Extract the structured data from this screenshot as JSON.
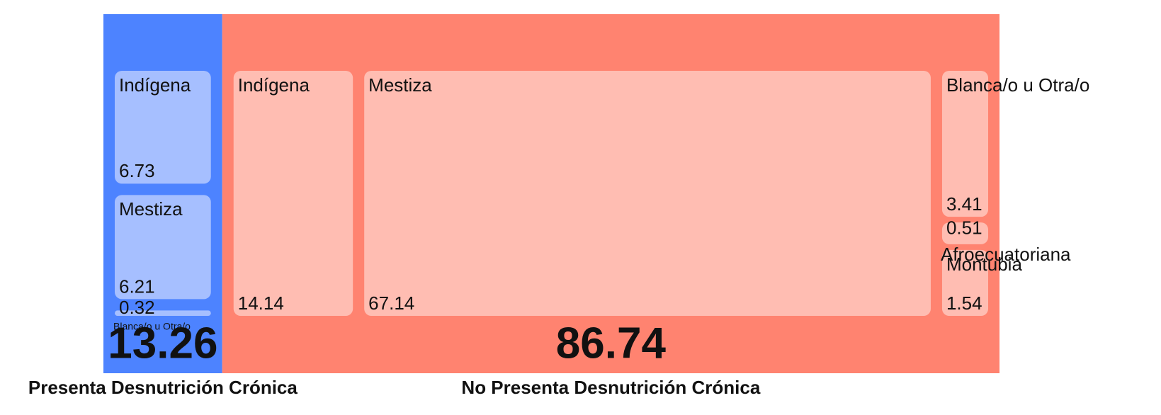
{
  "chart_data": {
    "type": "treemap",
    "groups": [
      {
        "name": "Presenta Desnutrición Crónica",
        "value": 13.26,
        "color": "#4d83ff",
        "child_color": "#a6bfff",
        "children": [
          {
            "name": "Indígena",
            "value": 6.73
          },
          {
            "name": "Mestiza",
            "value": 6.21
          },
          {
            "name": "Blanca/o u Otra/o",
            "value": 0.32
          }
        ]
      },
      {
        "name": "No Presenta Desnutrición Crónica",
        "value": 86.74,
        "color": "#ff8370",
        "child_color": "#ffbdb2",
        "children": [
          {
            "name": "Indígena",
            "value": 14.14
          },
          {
            "name": "Mestiza",
            "value": 67.14
          },
          {
            "name": "Blanca/o u Otra/o",
            "value": 3.41
          },
          {
            "name": "Afroecuatoriana",
            "value": 0.51
          },
          {
            "name": "Montubia",
            "value": 1.54
          }
        ]
      }
    ]
  }
}
